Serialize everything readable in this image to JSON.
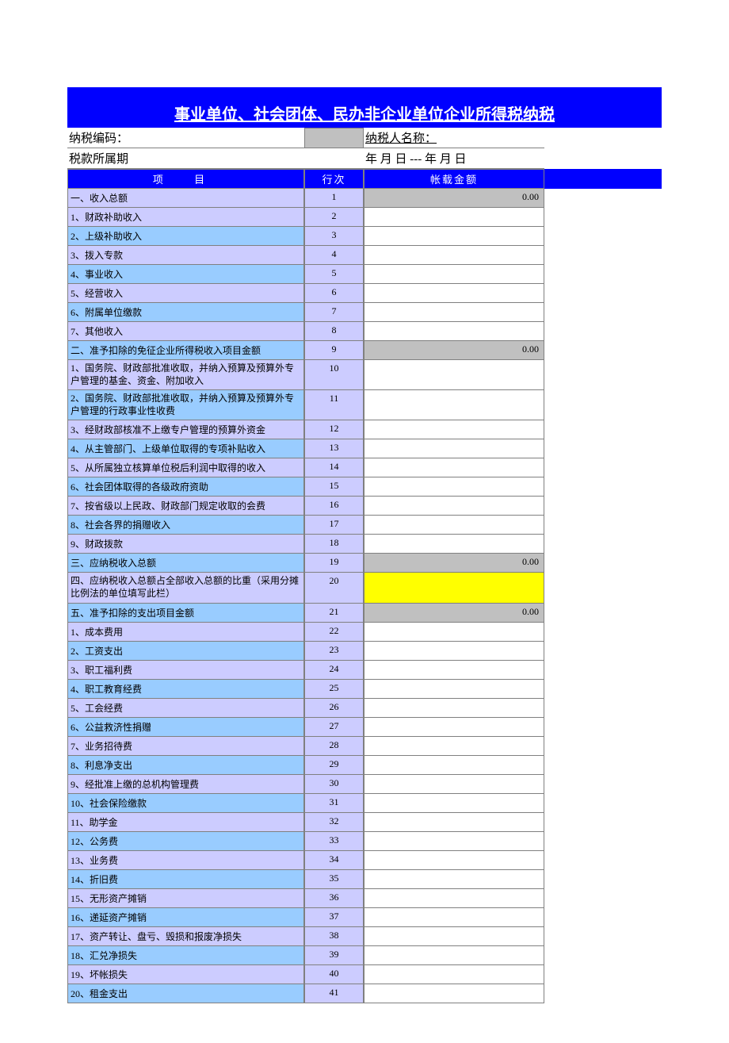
{
  "colors": {
    "title_bg": "#0000ff",
    "title_fg": "#ffffff",
    "header_bg": "#0000ff",
    "header_fg": "#ffffff",
    "row_light": "#ccccff",
    "row_dark": "#99ccff",
    "gray_fill": "#c0c0c0",
    "yellow_fill": "#ffff00",
    "border": "#808080",
    "page_bg": "#ffffff"
  },
  "title": "事业单位、社会团体、民办非企业单位企业所得税纳税",
  "info": {
    "taxpayer_code_label": "纳税编码：",
    "taxpayer_code_value": "",
    "taxpayer_name_label": "纳税人名称：",
    "tax_period_label": "税款所属期",
    "tax_period_value": "年 月 日 --- 年 月 日"
  },
  "headers": {
    "item": "项        目",
    "rownum": "行次",
    "amount": "帐载金额"
  },
  "rows": [
    {
      "item": "一、收入总额",
      "row": "1",
      "amount": "0.00",
      "shade": "light",
      "atype": "gray"
    },
    {
      "item": "1、财政补助收入",
      "row": "2",
      "amount": "",
      "shade": "light",
      "atype": "empty"
    },
    {
      "item": "2、上级补助收入",
      "row": "3",
      "amount": "",
      "shade": "dark",
      "atype": "empty"
    },
    {
      "item": "3、拨入专款",
      "row": "4",
      "amount": "",
      "shade": "light",
      "atype": "empty"
    },
    {
      "item": "4、事业收入",
      "row": "5",
      "amount": "",
      "shade": "dark",
      "atype": "empty"
    },
    {
      "item": "5、经营收入",
      "row": "6",
      "amount": "",
      "shade": "light",
      "atype": "empty"
    },
    {
      "item": "6、附属单位缴款",
      "row": "7",
      "amount": "",
      "shade": "dark",
      "atype": "empty"
    },
    {
      "item": "7、其他收入",
      "row": "8",
      "amount": "",
      "shade": "light",
      "atype": "empty"
    },
    {
      "item": "二、准予扣除的免征企业所得税收入项目金额",
      "row": "9",
      "amount": "0.00",
      "shade": "dark",
      "atype": "gray"
    },
    {
      "item": "1、国务院、财政部批准收取，并纳入预算及预算外专户管理的基金、资金、附加收入",
      "row": "10",
      "amount": "",
      "shade": "light",
      "atype": "empty",
      "multi": true
    },
    {
      "item": "2、国务院、财政部批准收取，并纳入预算及预算外专户管理的行政事业性收费",
      "row": "11",
      "amount": "",
      "shade": "dark",
      "atype": "empty",
      "multi": true
    },
    {
      "item": "3、经财政部核准不上缴专户管理的预算外资金",
      "row": "12",
      "amount": "",
      "shade": "light",
      "atype": "empty"
    },
    {
      "item": "4、从主管部门、上级单位取得的专项补贴收入",
      "row": "13",
      "amount": "",
      "shade": "dark",
      "atype": "empty"
    },
    {
      "item": "5、从所属独立核算单位税后利润中取得的收入",
      "row": "14",
      "amount": "",
      "shade": "light",
      "atype": "empty"
    },
    {
      "item": "6、社会团体取得的各级政府资助",
      "row": "15",
      "amount": "",
      "shade": "dark",
      "atype": "empty"
    },
    {
      "item": "7、按省级以上民政、财政部门规定收取的会费",
      "row": "16",
      "amount": "",
      "shade": "light",
      "atype": "empty"
    },
    {
      "item": "8、社会各界的捐赠收入",
      "row": "17",
      "amount": "",
      "shade": "dark",
      "atype": "empty"
    },
    {
      "item": "9、财政拨款",
      "row": "18",
      "amount": "",
      "shade": "light",
      "atype": "empty"
    },
    {
      "item": "三、应纳税收入总额",
      "row": "19",
      "amount": "0.00",
      "shade": "dark",
      "atype": "gray"
    },
    {
      "item": "四、应纳税收入总额占全部收入总额的比重（采用分摊比例法的单位填写此栏）",
      "row": "20",
      "amount": "",
      "shade": "light",
      "atype": "yellow",
      "multi": true
    },
    {
      "item": "五、准予扣除的支出项目金额",
      "row": "21",
      "amount": "0.00",
      "shade": "dark",
      "atype": "gray"
    },
    {
      "item": "1、成本费用",
      "row": "22",
      "amount": "",
      "shade": "light",
      "atype": "empty"
    },
    {
      "item": "2、工资支出",
      "row": "23",
      "amount": "",
      "shade": "dark",
      "atype": "empty"
    },
    {
      "item": "3、职工福利费",
      "row": "24",
      "amount": "",
      "shade": "light",
      "atype": "empty"
    },
    {
      "item": "4、职工教育经费",
      "row": "25",
      "amount": "",
      "shade": "dark",
      "atype": "empty"
    },
    {
      "item": "5、工会经费",
      "row": "26",
      "amount": "",
      "shade": "light",
      "atype": "empty"
    },
    {
      "item": "6、公益救济性捐赠",
      "row": "27",
      "amount": "",
      "shade": "dark",
      "atype": "empty"
    },
    {
      "item": "7、业务招待费",
      "row": "28",
      "amount": "",
      "shade": "light",
      "atype": "empty"
    },
    {
      "item": "8、利息净支出",
      "row": "29",
      "amount": "",
      "shade": "dark",
      "atype": "empty"
    },
    {
      "item": "9、经批准上缴的总机构管理费",
      "row": "30",
      "amount": "",
      "shade": "light",
      "atype": "empty"
    },
    {
      "item": "10、社会保险缴款",
      "row": "31",
      "amount": "",
      "shade": "dark",
      "atype": "empty"
    },
    {
      "item": "11、助学金",
      "row": "32",
      "amount": "",
      "shade": "light",
      "atype": "empty"
    },
    {
      "item": "12、公务费",
      "row": "33",
      "amount": "",
      "shade": "dark",
      "atype": "empty"
    },
    {
      "item": "13、业务费",
      "row": "34",
      "amount": "",
      "shade": "light",
      "atype": "empty"
    },
    {
      "item": "14、折旧费",
      "row": "35",
      "amount": "",
      "shade": "dark",
      "atype": "empty"
    },
    {
      "item": "15、无形资产摊销",
      "row": "36",
      "amount": "",
      "shade": "light",
      "atype": "empty"
    },
    {
      "item": "16、递延资产摊销",
      "row": "37",
      "amount": "",
      "shade": "dark",
      "atype": "empty"
    },
    {
      "item": "17、资产转让、盘亏、毁损和报废净损失",
      "row": "38",
      "amount": "",
      "shade": "light",
      "atype": "empty"
    },
    {
      "item": "18、汇兑净损失",
      "row": "39",
      "amount": "",
      "shade": "dark",
      "atype": "empty"
    },
    {
      "item": "19、坏帐损失",
      "row": "40",
      "amount": "",
      "shade": "light",
      "atype": "empty"
    },
    {
      "item": "20、租金支出",
      "row": "41",
      "amount": "",
      "shade": "dark",
      "atype": "empty"
    }
  ]
}
